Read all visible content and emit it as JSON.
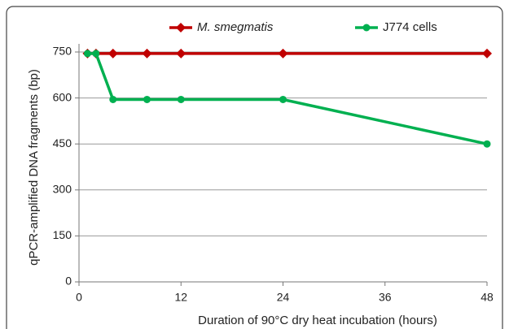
{
  "chart_data": {
    "type": "line",
    "xlabel": "Duration of 90°C dry heat incubation (hours)",
    "ylabel": "qPCR-amplified DNA fragments (bp)",
    "x": [
      1,
      2,
      4,
      8,
      12,
      24,
      48
    ],
    "series": [
      {
        "name": "M. smegmatis",
        "color": "#c00000",
        "marker": "diamond",
        "values": [
          745,
          745,
          745,
          745,
          745,
          745,
          745
        ]
      },
      {
        "name": "J774 cells",
        "color": "#00b050",
        "marker": "circle",
        "values": [
          745,
          745,
          595,
          595,
          595,
          595,
          450
        ]
      }
    ],
    "xlim": [
      0,
      48
    ],
    "xticks": [
      0,
      12,
      24,
      36,
      48
    ],
    "ylim": [
      0,
      750
    ],
    "yticks": [
      0,
      150,
      300,
      450,
      600,
      750
    ],
    "grid": true,
    "legend": "top"
  }
}
